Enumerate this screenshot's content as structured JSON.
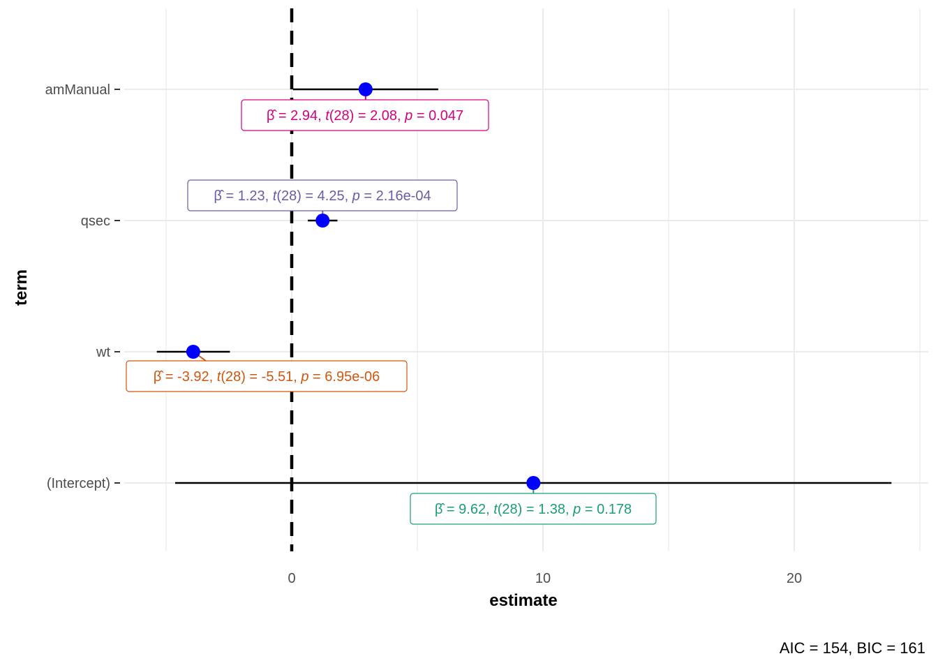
{
  "chart_data": {
    "type": "forest",
    "xlabel": "estimate",
    "ylabel": "term",
    "caption": "AIC = 154, BIC = 161",
    "xlim": [
      -5.0,
      25.0
    ],
    "x_ticks": [
      0,
      10,
      20
    ],
    "x_minor_ticks": [
      -5,
      5,
      15,
      25
    ],
    "reference_line": 0,
    "grid": true,
    "point_color": "#0000FF",
    "terms": [
      {
        "term": "amManual",
        "estimate": 2.94,
        "conf_low": 0.05,
        "conf_high": 5.83,
        "color": "#D6007E",
        "stat": {
          "beta": "2.94",
          "df": "28",
          "t": "2.08",
          "p": "0.047"
        },
        "label_side": "below"
      },
      {
        "term": "qsec",
        "estimate": 1.23,
        "conf_low": 0.64,
        "conf_high": 1.82,
        "color": "#6A5CA8",
        "stat": {
          "beta": "1.23",
          "df": "28",
          "t": "4.25",
          "p": "2.16e-04"
        },
        "label_side": "above"
      },
      {
        "term": "wt",
        "estimate": -3.92,
        "conf_low": -5.37,
        "conf_high": -2.46,
        "color": "#D1560E",
        "stat": {
          "beta": "-3.92",
          "df": "28",
          "t": "-5.51",
          "p": "6.95e-06"
        },
        "label_side": "below"
      },
      {
        "term": "(Intercept)",
        "estimate": 9.62,
        "conf_low": -4.64,
        "conf_high": 23.87,
        "color": "#1B9E77",
        "stat": {
          "beta": "9.62",
          "df": "28",
          "t": "1.38",
          "p": "0.178"
        },
        "label_side": "below"
      }
    ]
  }
}
